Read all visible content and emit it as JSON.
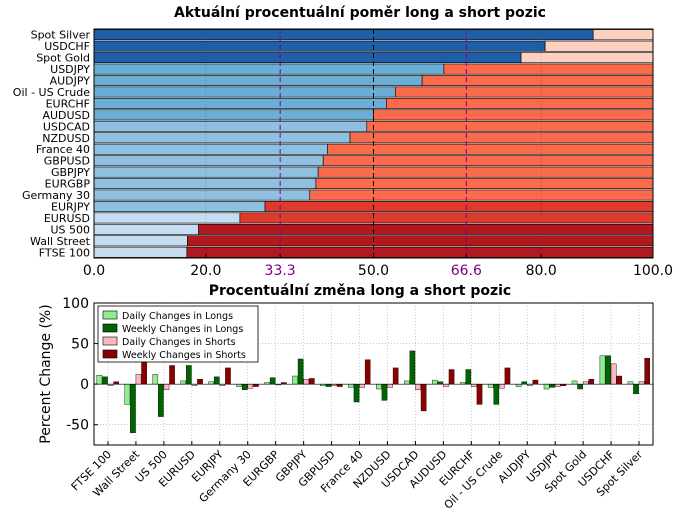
{
  "chart_data": [
    {
      "type": "bar",
      "orientation": "horizontal",
      "stacked": true,
      "title": "Aktuální procentuální poměr long a short pozic",
      "categories": [
        "Spot Silver",
        "USDCHF",
        "Spot Gold",
        "USDJPY",
        "AUDJPY",
        "Oil - US Crude",
        "EURCHF",
        "AUDUSD",
        "USDCAD",
        "NZDUSD",
        "France 40",
        "GBPUSD",
        "GBPJPY",
        "EURGBP",
        "Germany 30",
        "EURJPY",
        "EURUSD",
        "US 500",
        "Wall Street",
        "FTSE 100"
      ],
      "series": [
        {
          "name": "",
          "values": [
            89.3,
            80.7,
            76.4,
            62.6,
            58.7,
            53.9,
            52.3,
            50.0,
            48.8,
            45.8,
            41.8,
            41.0,
            40.1,
            39.7,
            38.6,
            30.6,
            26.1,
            18.7,
            16.7,
            16.6
          ]
        },
        {
          "name": "",
          "values": [
            10.7,
            19.3,
            23.6,
            37.4,
            41.3,
            46.1,
            47.7,
            50.0,
            51.2,
            54.2,
            58.2,
            59.0,
            59.9,
            60.3,
            61.4,
            69.4,
            73.9,
            81.3,
            83.3,
            83.4
          ]
        }
      ],
      "xlim": [
        0,
        100
      ],
      "xticks": [
        "0.0",
        "20.0",
        "33.3",
        "50.0",
        "66.6",
        "80.0",
        "100.0"
      ],
      "xtick_values": [
        0,
        20,
        33.3,
        50,
        66.6,
        80,
        100
      ],
      "highlight_ticks": [
        "33.3",
        "66.6"
      ],
      "vlines": [
        {
          "x": 33.3,
          "color": "#800080"
        },
        {
          "x": 50,
          "color": "#000000"
        },
        {
          "x": 66.6,
          "color": "#800080"
        }
      ],
      "long_shades": {
        "dark": "#1f5fa8",
        "mid": "#6aaed6",
        "light": "#c6ddf0"
      },
      "short_shades": {
        "light": "#fdd0c0",
        "mid": "#fb6a4a",
        "dark": "#b3181e"
      },
      "grid": true
    },
    {
      "type": "bar",
      "title": "Procentuální změna long a short pozic",
      "ylabel": "Percent Change (%)",
      "ylim": [
        -75,
        100
      ],
      "yticks": [
        100,
        50,
        0,
        -50
      ],
      "categories": [
        "FTSE 100",
        "Wall Street",
        "US 500",
        "EURUSD",
        "EURJPY",
        "Germany 30",
        "EURGBP",
        "GBPJPY",
        "GBPUSD",
        "France 40",
        "NZDUSD",
        "USDCAD",
        "AUDUSD",
        "EURCHF",
        "Oil - US Crude",
        "AUDJPY",
        "USDJPY",
        "Spot Gold",
        "USDCHF",
        "Spot Silver"
      ],
      "series": [
        {
          "name": "Daily Changes in Longs",
          "color": "#90ee90",
          "values": [
            11,
            -25,
            12,
            4,
            3,
            -3,
            2,
            10,
            -2,
            -4,
            -6,
            4,
            5,
            2,
            -4,
            -3,
            -6,
            4,
            35,
            3
          ]
        },
        {
          "name": "Weekly Changes in Longs",
          "color": "#006400",
          "values": [
            9,
            -60,
            -40,
            23,
            9,
            -7,
            8,
            31,
            -3,
            -22,
            -20,
            41,
            3,
            18,
            -25,
            3,
            -4,
            -6,
            35,
            -12
          ]
        },
        {
          "name": "Daily Changes in Shorts",
          "color": "#ffb6c1",
          "values": [
            -2,
            12,
            -7,
            -2,
            -2,
            -5,
            -1,
            6,
            -2,
            -4,
            -4,
            -7,
            -3,
            -3,
            -5,
            -2,
            -3,
            3,
            25,
            3
          ]
        },
        {
          "name": "Weekly Changes in Shorts",
          "color": "#8b0000",
          "values": [
            3,
            28,
            23,
            6,
            20,
            -3,
            2,
            7,
            -3,
            30,
            20,
            -33,
            18,
            -25,
            20,
            5,
            -2,
            6,
            10,
            32
          ]
        }
      ],
      "legend_placement": "top-left",
      "grid": true
    }
  ]
}
